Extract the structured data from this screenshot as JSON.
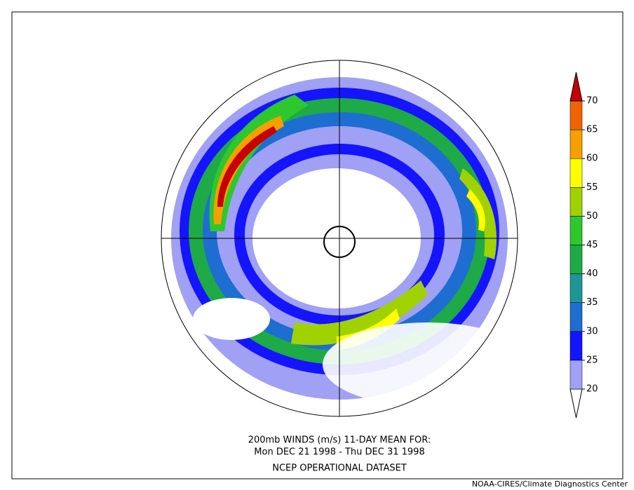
{
  "title_lines": [
    "200mb WINDS (m/s)   11-DAY MEAN FOR:",
    "Mon DEC 21 1998 - Thu DEC 31 1998",
    "NCEP OPERATIONAL DATASET"
  ],
  "credit": "NOAA-CIRES/Climate Diagnostics Center",
  "colorbar": {
    "ticks": [
      20,
      25,
      30,
      35,
      40,
      45,
      50,
      55,
      60,
      65,
      70
    ],
    "colors": [
      "#ffffff",
      "#a0a0f5",
      "#1414ff",
      "#1e6ed2",
      "#1e9696",
      "#1eaa46",
      "#2dc82d",
      "#a0d200",
      "#ffff00",
      "#f5a000",
      "#f06400",
      "#c80000"
    ]
  }
}
